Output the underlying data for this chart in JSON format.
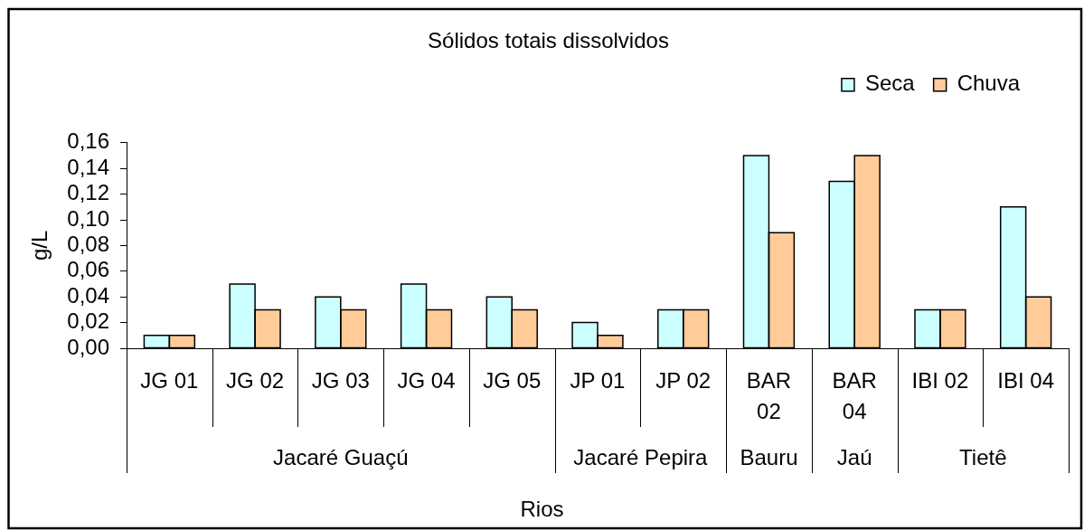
{
  "chart_data": {
    "type": "bar",
    "title": "Sólidos totais dissolvidos",
    "xlabel": "Rios",
    "ylabel": "g/L",
    "categories": [
      "JG 01",
      "JG 02",
      "JG 03",
      "JG 04",
      "JG 05",
      "JP 01",
      "JP 02",
      "BAR 02",
      "BAR 04",
      "IBI 02",
      "IBI 04"
    ],
    "series": [
      {
        "name": "Seca",
        "color": "#ccffff",
        "values": [
          0.01,
          0.05,
          0.04,
          0.05,
          0.04,
          0.02,
          0.03,
          0.15,
          0.13,
          0.03,
          0.11
        ]
      },
      {
        "name": "Chuva",
        "color": "#ffcc99",
        "values": [
          0.01,
          0.03,
          0.03,
          0.03,
          0.03,
          0.01,
          0.03,
          0.09,
          0.15,
          0.03,
          0.04
        ]
      }
    ],
    "ylim": [
      0,
      0.16
    ],
    "yticks": [
      {
        "value": 0,
        "label": "0,00"
      },
      {
        "value": 0.02,
        "label": "0,02"
      },
      {
        "value": 0.04,
        "label": "0,04"
      },
      {
        "value": 0.06,
        "label": "0,06"
      },
      {
        "value": 0.08,
        "label": "0,08"
      },
      {
        "value": 0.1,
        "label": "0,10"
      },
      {
        "value": 0.12,
        "label": "0,12"
      },
      {
        "value": 0.14,
        "label": "0,14"
      },
      {
        "value": 0.16,
        "label": "0,16"
      }
    ],
    "legend": "top right",
    "annotations": [
      "Jacaré Guaçú",
      "Jacaré Pepira",
      "Bauru",
      "Jaú",
      "Tietê"
    ]
  }
}
